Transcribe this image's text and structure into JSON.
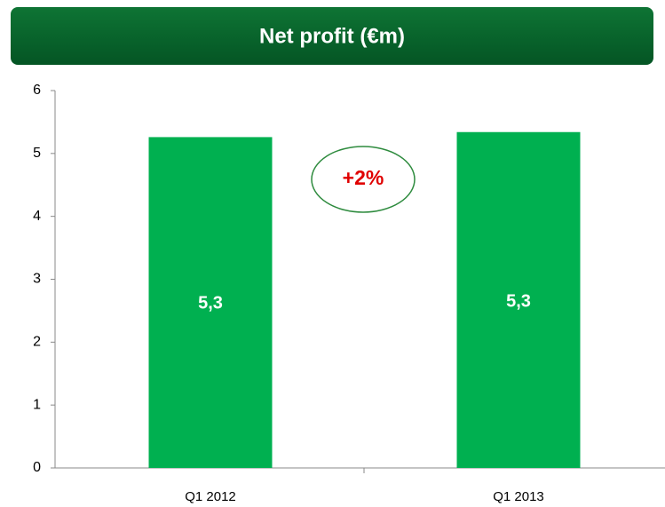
{
  "chart_data": {
    "type": "bar",
    "title": "Net profit (€m)",
    "categories": [
      "Q1 2012",
      "Q1 2013"
    ],
    "values": [
      5.26,
      5.34
    ],
    "value_labels": [
      "5,3",
      "5,3"
    ],
    "color": "#00b050",
    "ylim": [
      0,
      6
    ],
    "yticks": [
      0,
      1,
      2,
      3,
      4,
      5,
      6
    ],
    "annotation": "+2%"
  }
}
